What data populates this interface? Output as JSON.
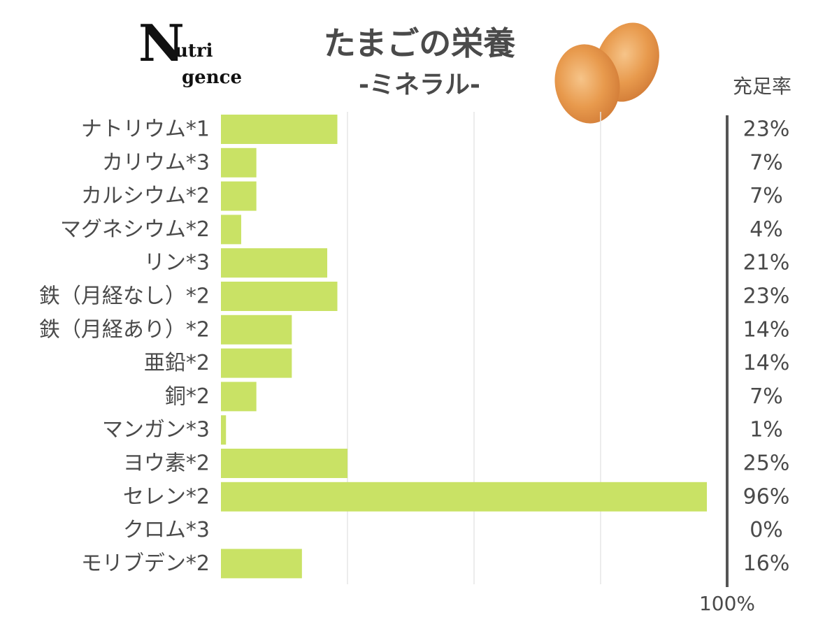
{
  "logo": {
    "big": "N",
    "line1": "utri",
    "line2": "gence"
  },
  "header": {
    "title": "たまごの栄養",
    "subtitle": "-ミネラル-",
    "rate_label": "充足率"
  },
  "icons": {
    "eggs": "eggs-illustration"
  },
  "colors": {
    "bar": "#c9e265",
    "grid": "#e6e6e6",
    "divider": "#555555",
    "text": "#4a4a4a",
    "egg": "#e89a4d"
  },
  "chart_data": {
    "type": "bar",
    "orientation": "horizontal",
    "title": "たまごの栄養",
    "subtitle": "-ミネラル-",
    "value_header": "充足率",
    "xlim": [
      0,
      100
    ],
    "x_max_label": "100%",
    "grid": true,
    "categories": [
      "ナトリウム*1",
      "カリウム*3",
      "カルシウム*2",
      "マグネシウム*2",
      "リン*3",
      "鉄（月経なし）*2",
      "鉄（月経あり）*2",
      "亜鉛*2",
      "銅*2",
      "マンガン*3",
      "ヨウ素*2",
      "セレン*2",
      "クロム*3",
      "モリブデン*2"
    ],
    "values": [
      23,
      7,
      7,
      4,
      21,
      23,
      14,
      14,
      7,
      1,
      25,
      96,
      0,
      16
    ],
    "value_labels": [
      "23%",
      "7%",
      "7%",
      "4%",
      "21%",
      "23%",
      "14%",
      "14%",
      "7%",
      "1%",
      "25%",
      "96%",
      "0%",
      "16%"
    ]
  }
}
